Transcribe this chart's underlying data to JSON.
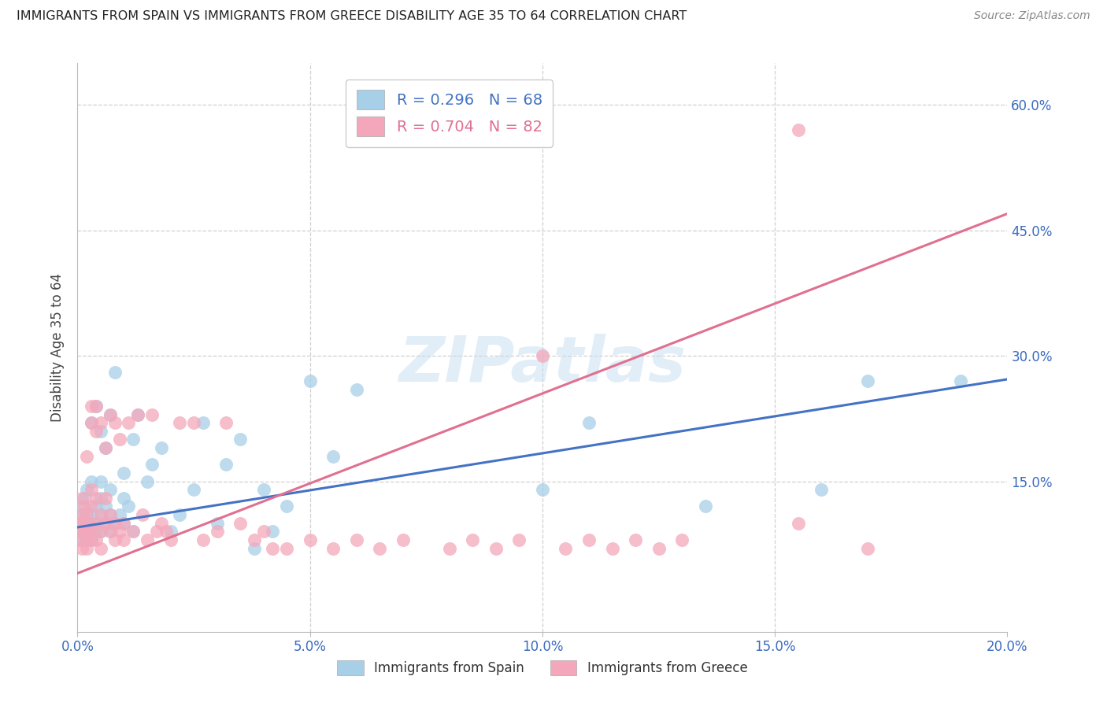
{
  "title": "IMMIGRANTS FROM SPAIN VS IMMIGRANTS FROM GREECE DISABILITY AGE 35 TO 64 CORRELATION CHART",
  "source": "Source: ZipAtlas.com",
  "ylabel": "Disability Age 35 to 64",
  "xlim": [
    0.0,
    0.2
  ],
  "ylim": [
    -0.03,
    0.65
  ],
  "blue_R": 0.296,
  "blue_N": 68,
  "pink_R": 0.704,
  "pink_N": 82,
  "blue_color": "#a8cfe8",
  "pink_color": "#f4a7ba",
  "blue_line_color": "#4472c4",
  "pink_line_color": "#e07090",
  "legend_label_blue": "Immigrants from Spain",
  "legend_label_pink": "Immigrants from Greece",
  "watermark": "ZIPatlas",
  "blue_line_x0": 0.0,
  "blue_line_y0": 0.095,
  "blue_line_x1": 0.2,
  "blue_line_y1": 0.272,
  "pink_line_x0": 0.0,
  "pink_line_y0": 0.04,
  "pink_line_x1": 0.2,
  "pink_line_y1": 0.47,
  "blue_scatter_x": [
    0.0005,
    0.001,
    0.001,
    0.001,
    0.001,
    0.001,
    0.0015,
    0.0015,
    0.002,
    0.002,
    0.002,
    0.002,
    0.002,
    0.003,
    0.003,
    0.003,
    0.003,
    0.003,
    0.003,
    0.004,
    0.004,
    0.004,
    0.004,
    0.005,
    0.005,
    0.005,
    0.005,
    0.005,
    0.006,
    0.006,
    0.006,
    0.007,
    0.007,
    0.007,
    0.007,
    0.008,
    0.008,
    0.009,
    0.01,
    0.01,
    0.01,
    0.011,
    0.012,
    0.012,
    0.013,
    0.015,
    0.016,
    0.018,
    0.02,
    0.022,
    0.025,
    0.027,
    0.03,
    0.032,
    0.035,
    0.038,
    0.04,
    0.042,
    0.045,
    0.05,
    0.055,
    0.06,
    0.1,
    0.11,
    0.135,
    0.16,
    0.17,
    0.19
  ],
  "blue_scatter_y": [
    0.1,
    0.08,
    0.09,
    0.1,
    0.11,
    0.12,
    0.09,
    0.13,
    0.08,
    0.09,
    0.1,
    0.11,
    0.14,
    0.08,
    0.09,
    0.1,
    0.11,
    0.15,
    0.22,
    0.09,
    0.1,
    0.12,
    0.24,
    0.09,
    0.11,
    0.13,
    0.15,
    0.21,
    0.1,
    0.12,
    0.19,
    0.09,
    0.11,
    0.14,
    0.23,
    0.1,
    0.28,
    0.11,
    0.1,
    0.13,
    0.16,
    0.12,
    0.09,
    0.2,
    0.23,
    0.15,
    0.17,
    0.19,
    0.09,
    0.11,
    0.14,
    0.22,
    0.1,
    0.17,
    0.2,
    0.07,
    0.14,
    0.09,
    0.12,
    0.27,
    0.18,
    0.26,
    0.14,
    0.22,
    0.12,
    0.14,
    0.27,
    0.27
  ],
  "pink_scatter_x": [
    0.0003,
    0.0005,
    0.0008,
    0.001,
    0.001,
    0.001,
    0.001,
    0.0012,
    0.0015,
    0.002,
    0.002,
    0.002,
    0.002,
    0.002,
    0.0025,
    0.003,
    0.003,
    0.003,
    0.003,
    0.003,
    0.003,
    0.004,
    0.004,
    0.004,
    0.004,
    0.004,
    0.005,
    0.005,
    0.005,
    0.005,
    0.006,
    0.006,
    0.006,
    0.007,
    0.007,
    0.007,
    0.008,
    0.008,
    0.008,
    0.009,
    0.009,
    0.01,
    0.01,
    0.011,
    0.012,
    0.013,
    0.014,
    0.015,
    0.016,
    0.017,
    0.018,
    0.019,
    0.02,
    0.022,
    0.025,
    0.027,
    0.03,
    0.032,
    0.035,
    0.038,
    0.04,
    0.042,
    0.045,
    0.05,
    0.055,
    0.06,
    0.065,
    0.07,
    0.08,
    0.085,
    0.09,
    0.095,
    0.1,
    0.105,
    0.11,
    0.115,
    0.12,
    0.125,
    0.13,
    0.155,
    0.155,
    0.17
  ],
  "pink_scatter_y": [
    0.09,
    0.08,
    0.1,
    0.07,
    0.09,
    0.11,
    0.13,
    0.1,
    0.12,
    0.07,
    0.08,
    0.09,
    0.11,
    0.18,
    0.1,
    0.08,
    0.09,
    0.12,
    0.14,
    0.22,
    0.24,
    0.08,
    0.1,
    0.13,
    0.21,
    0.24,
    0.09,
    0.11,
    0.22,
    0.07,
    0.1,
    0.13,
    0.19,
    0.09,
    0.11,
    0.23,
    0.08,
    0.1,
    0.22,
    0.09,
    0.2,
    0.08,
    0.1,
    0.22,
    0.09,
    0.23,
    0.11,
    0.08,
    0.23,
    0.09,
    0.1,
    0.09,
    0.08,
    0.22,
    0.22,
    0.08,
    0.09,
    0.22,
    0.1,
    0.08,
    0.09,
    0.07,
    0.07,
    0.08,
    0.07,
    0.08,
    0.07,
    0.08,
    0.07,
    0.08,
    0.07,
    0.08,
    0.3,
    0.07,
    0.08,
    0.07,
    0.08,
    0.07,
    0.08,
    0.57,
    0.1,
    0.07
  ]
}
